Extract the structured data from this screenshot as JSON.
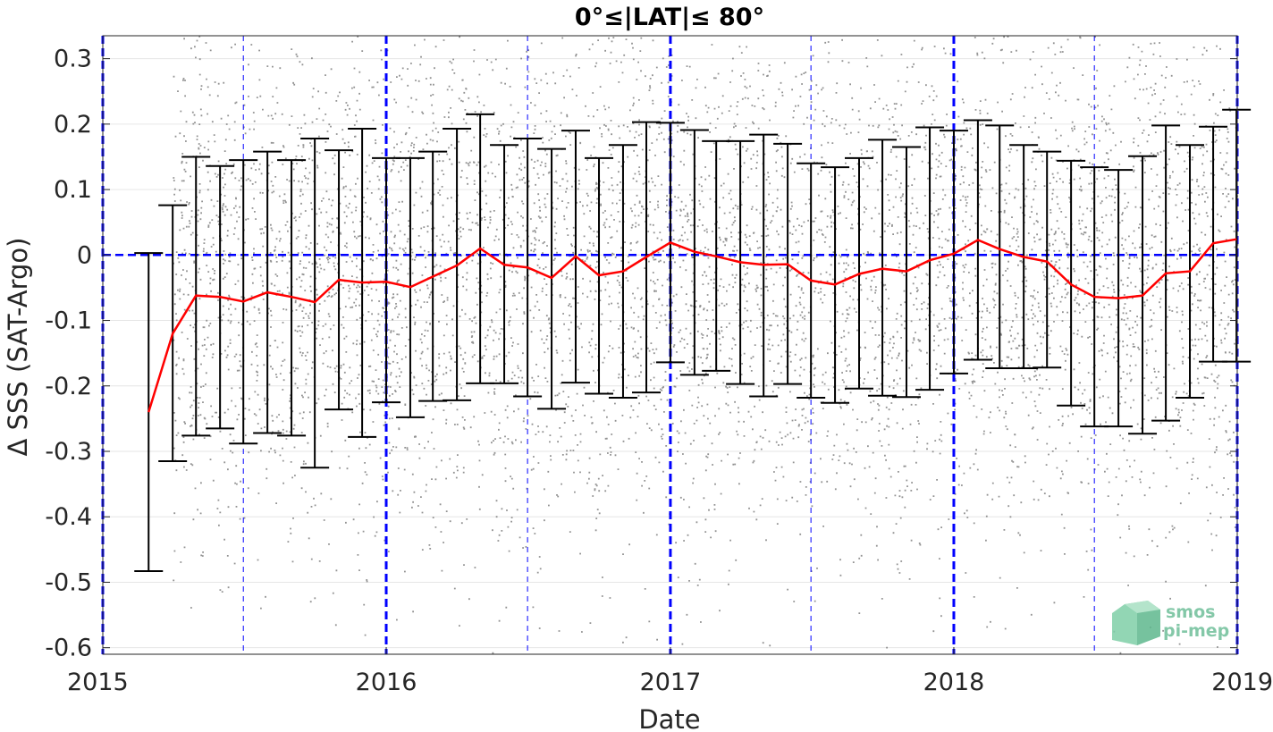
{
  "chart_data": {
    "type": "scatter",
    "title": "0°≤|LAT|≤ 80°",
    "xlabel": "Date",
    "ylabel": "Δ SSS (SAT-Argo)",
    "xlim": [
      "2015-01-01",
      "2019-01-01"
    ],
    "ylim": [
      -0.61,
      0.335
    ],
    "x_ticks": [
      "2015",
      "2016",
      "2017",
      "2018",
      "2019"
    ],
    "y_ticks": [
      0.3,
      0.2,
      0.1,
      0,
      -0.1,
      -0.2,
      -0.3,
      -0.4,
      -0.5,
      -0.6
    ],
    "y_tick_labels": [
      "0.3",
      "0.2",
      "0.1",
      "0",
      "-0.1",
      "-0.2",
      "-0.3",
      "-0.4",
      "-0.5",
      "-0.6"
    ],
    "grid": true,
    "year_lines": [
      "2015-01-01",
      "2016-01-01",
      "2017-01-01",
      "2018-01-01",
      "2019-01-01"
    ],
    "half_year_lines": [
      "2015-07-01",
      "2016-07-01",
      "2017-07-01",
      "2018-07-01"
    ],
    "zero_line": 0,
    "scatter": {
      "start": "2015-04-01",
      "end": "2019-01-01",
      "center": -0.02,
      "spread": 0.19,
      "color": "#7f7f7f"
    },
    "monthly": {
      "dates": [
        "2015-03-01",
        "2015-04-01",
        "2015-05-01",
        "2015-06-01",
        "2015-07-01",
        "2015-08-01",
        "2015-09-01",
        "2015-10-01",
        "2015-11-01",
        "2015-12-01",
        "2016-01-01",
        "2016-02-01",
        "2016-03-01",
        "2016-04-01",
        "2016-05-01",
        "2016-06-01",
        "2016-07-01",
        "2016-08-01",
        "2016-09-01",
        "2016-10-01",
        "2016-11-01",
        "2016-12-01",
        "2017-01-01",
        "2017-02-01",
        "2017-03-01",
        "2017-04-01",
        "2017-05-01",
        "2017-06-01",
        "2017-07-01",
        "2017-08-01",
        "2017-09-01",
        "2017-10-01",
        "2017-11-01",
        "2017-12-01",
        "2018-01-01",
        "2018-02-01",
        "2018-03-01",
        "2018-04-01",
        "2018-05-01",
        "2018-06-01",
        "2018-07-01",
        "2018-08-01",
        "2018-09-01",
        "2018-10-01",
        "2018-11-01",
        "2018-12-01",
        "2018-12-31"
      ],
      "mean": [
        -0.24,
        -0.12,
        -0.062,
        -0.064,
        -0.071,
        -0.057,
        -0.064,
        -0.072,
        -0.038,
        -0.042,
        -0.041,
        -0.049,
        -0.033,
        -0.016,
        0.01,
        -0.015,
        -0.019,
        -0.035,
        -0.002,
        -0.031,
        -0.025,
        -0.003,
        0.019,
        0.005,
        -0.002,
        -0.011,
        -0.015,
        -0.014,
        -0.039,
        -0.045,
        -0.029,
        -0.021,
        -0.025,
        -0.008,
        0.002,
        0.023,
        0.009,
        -0.003,
        -0.01,
        -0.045,
        -0.064,
        -0.066,
        -0.062,
        -0.028,
        -0.025,
        0.018,
        0.024
      ],
      "upper": [
        0.003,
        0.076,
        0.15,
        0.136,
        0.145,
        0.158,
        0.145,
        0.178,
        0.16,
        0.193,
        0.148,
        0.148,
        0.158,
        0.193,
        0.215,
        0.168,
        0.178,
        0.162,
        0.19,
        0.148,
        0.168,
        0.203,
        0.202,
        0.191,
        0.174,
        0.174,
        0.184,
        0.17,
        0.14,
        0.134,
        0.148,
        0.176,
        0.165,
        0.195,
        0.19,
        0.206,
        0.198,
        0.168,
        0.158,
        0.144,
        0.134,
        0.13,
        0.151,
        0.198,
        0.168,
        0.196,
        0.222
      ],
      "lower": [
        -0.483,
        -0.315,
        -0.276,
        -0.265,
        -0.288,
        -0.272,
        -0.276,
        -0.325,
        -0.236,
        -0.278,
        -0.225,
        -0.248,
        -0.223,
        -0.222,
        -0.196,
        -0.196,
        -0.216,
        -0.235,
        -0.195,
        -0.212,
        -0.218,
        -0.21,
        -0.164,
        -0.183,
        -0.177,
        -0.197,
        -0.216,
        -0.197,
        -0.218,
        -0.226,
        -0.204,
        -0.215,
        -0.217,
        -0.206,
        -0.181,
        -0.16,
        -0.173,
        -0.173,
        -0.172,
        -0.23,
        -0.262,
        -0.262,
        -0.273,
        -0.253,
        -0.218,
        -0.163,
        -0.163
      ]
    },
    "colors": {
      "scatter": "#7f7f7f",
      "mean_line": "#ff0000",
      "error_bars": "#000000",
      "reference_lines": "#0000ff",
      "grid": "#e6e6e6"
    }
  },
  "logo": {
    "line1": "smos",
    "line2": "pi-mep"
  }
}
